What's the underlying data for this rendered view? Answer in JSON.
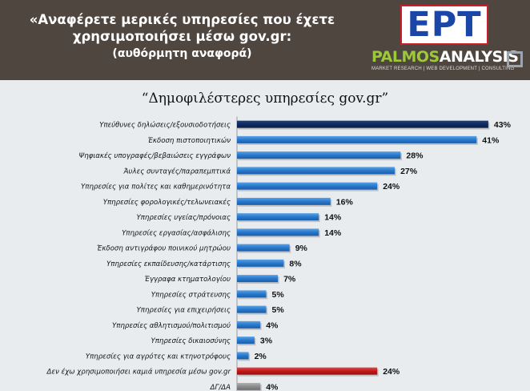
{
  "header": {
    "question_line1": "«Αναφέρετε μερικές υπηρεσίες που έχετε",
    "question_line2": "χρησιμοποιήσει μέσω gov.gr:",
    "question_line3": "(αυθόρμητη αναφορά)",
    "logo_ert_text": "EPT",
    "logo_palmos_text_1": "PALMOS",
    "logo_palmos_text_2": "ANALYSIS",
    "logo_palmos_tagline": "MARKET RESEARCH | WEB DEVELOPMENT | CONSULTING"
  },
  "colors": {
    "header_bg": "#504640",
    "blue_top": "#0f2a5e",
    "blue": "#2878cc",
    "red": "#c01818",
    "gray": "#8c8c8c"
  },
  "chart_data": {
    "type": "bar",
    "orientation": "horizontal",
    "title": "“Δημοφιλέστερες υπηρεσίες gov.gr”",
    "categories": [
      "Υπεύθυνες δηλώσεις/εξουσιοδοτήσεις",
      "Έκδοση πιστοποιητικών",
      "Ψηφιακές υπογραφές/βεβαιώσεις εγγράφων",
      "Άυλες συνταγές/παραπεμπτικά",
      "Υπηρεσίες για πολίτες και καθημερινότητα",
      "Υπηρεσίες φορολογικές/τελωνειακές",
      "Υπηρεσίες υγείας/πρόνοιας",
      "Υπηρεσίες εργασίας/ασφάλισης",
      "Έκδοση αντιγράφου ποινικού μητρώου",
      "Υπηρεσίες εκπαίδευσης/κατάρτισης",
      "Έγγραφα κτηματολογίου",
      "Υπηρεσίες στράτευσης",
      "Υπηρεσίες για επιχειρήσεις",
      "Υπηρεσίες αθλητισμού/πολιτισμού",
      "Υπηρεσίες δικαιοσύνης",
      "Υπηρεσίες για αγρότες και κτηνοτρόφους",
      "Δεν έχω χρησιμοποιήσει καμιά υπηρεσία μέσω gov.gr",
      "ΔΓ/ΔΑ"
    ],
    "values": [
      43,
      41,
      28,
      27,
      24,
      16,
      14,
      14,
      9,
      8,
      7,
      5,
      5,
      4,
      3,
      2,
      24,
      4
    ],
    "value_labels": [
      "43%",
      "41%",
      "28%",
      "27%",
      "24%",
      "16%",
      "14%",
      "14%",
      "9%",
      "8%",
      "7%",
      "5%",
      "5%",
      "4%",
      "3%",
      "2%",
      "24%",
      "4%"
    ],
    "bar_colors": [
      "blue_top",
      "blue",
      "blue",
      "blue",
      "blue",
      "blue",
      "blue",
      "blue",
      "blue",
      "blue",
      "blue",
      "blue",
      "blue",
      "blue",
      "blue",
      "blue",
      "red",
      "gray"
    ],
    "unit": "%",
    "xlim": [
      0,
      45
    ],
    "grid": false,
    "legend": "none"
  }
}
